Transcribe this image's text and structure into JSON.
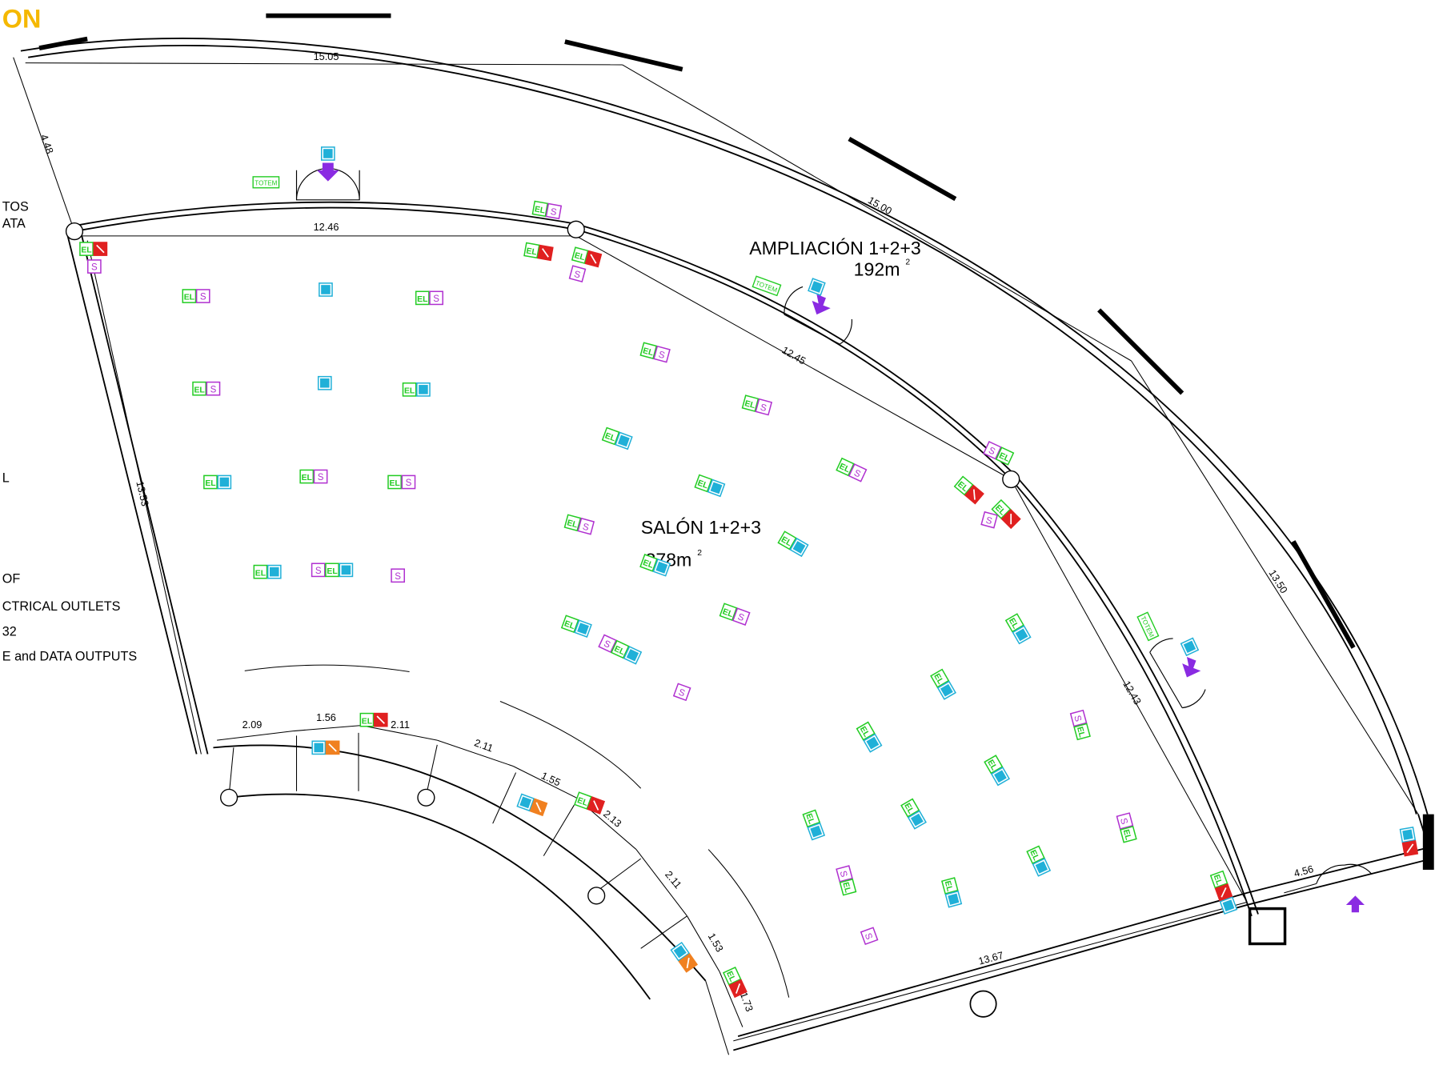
{
  "header": {
    "title": "ON"
  },
  "legend": [
    "TOS",
    "ATA",
    "L",
    "OF",
    "CTRICAL OUTLETS",
    "32",
    "E and DATA OUTPUTS"
  ],
  "rooms": [
    {
      "name": "AMPLIACIÓN 1+2+3",
      "area": "192m",
      "unit_exp": "2"
    },
    {
      "name": "SALÓN 1+2+3",
      "area": "378m",
      "unit_exp": "2"
    }
  ],
  "dimensions": [
    "15.05",
    "15.00",
    "4.48",
    "12.46",
    "12.45",
    "13.53",
    "13.50",
    "12.43",
    "13.67",
    "4.56",
    "2.09",
    "1.56",
    "2.11",
    "2.11",
    "1.55",
    "2.13",
    "2.11",
    "1.53",
    "1.73"
  ],
  "symbols": {
    "electric": "EL",
    "sound": "S",
    "totem": "TOTEM"
  }
}
